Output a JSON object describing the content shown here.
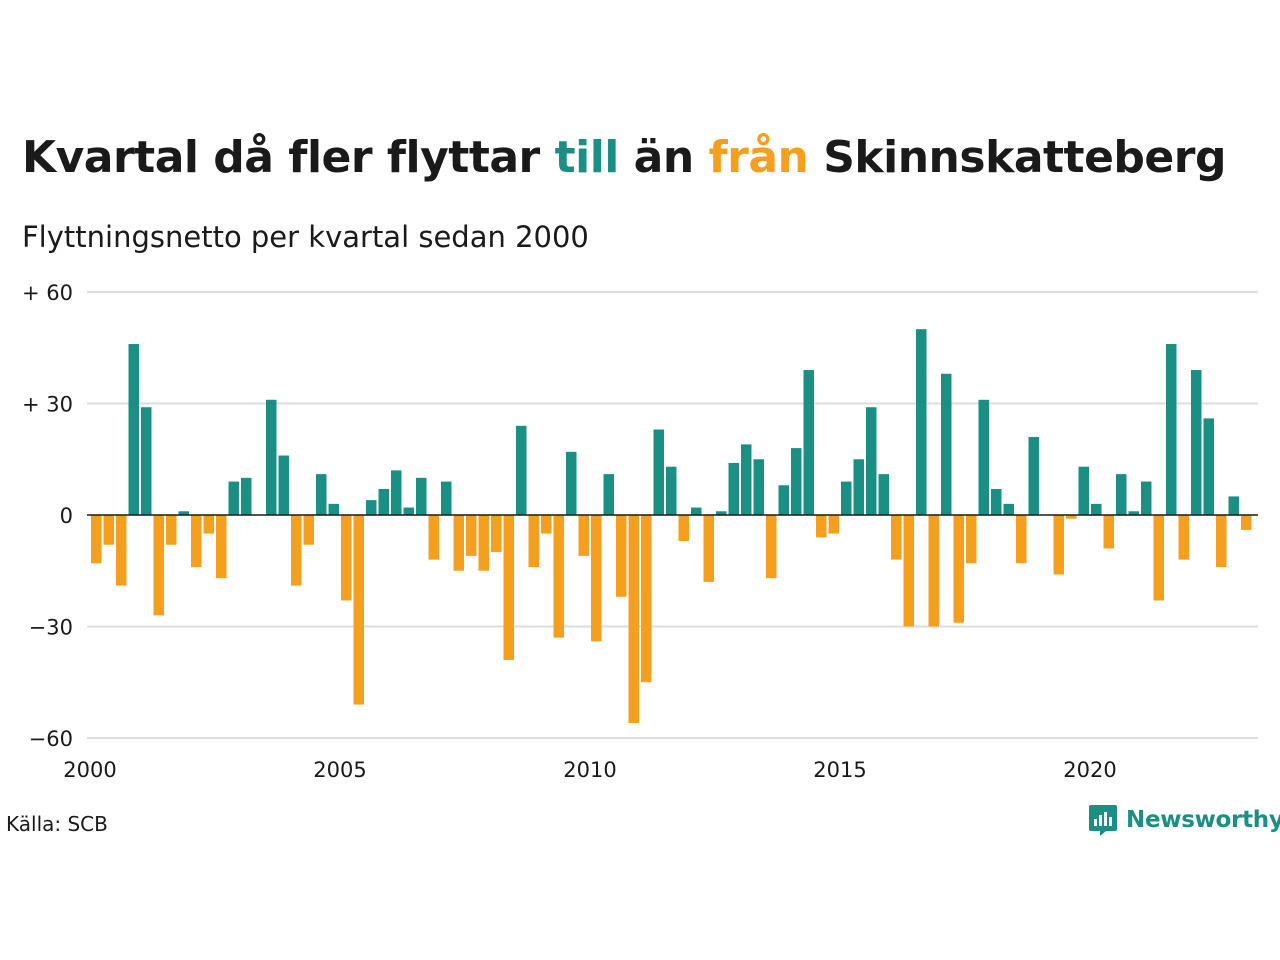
{
  "title": {
    "prefix": "Kvartal då fler flyttar ",
    "word_to": "till",
    "middle": " än ",
    "word_from": "från",
    "suffix": " Skinnskatteberg"
  },
  "subtitle": "Flyttningsnetto per kvartal sedan 2000",
  "source": "Källa: SCB",
  "brand": {
    "name": "Newsworthy",
    "icon": "newsworthy-logo-icon"
  },
  "colors": {
    "positive": "#1a9085",
    "negative": "#f59f1e",
    "grid": "#dddddd",
    "axis": "#1a1a1a",
    "title_to": "#1a9085",
    "title_from": "#f59f1e"
  },
  "chart_data": {
    "type": "bar",
    "x_start": "2000 Q1",
    "ylim": [
      -60,
      60
    ],
    "yticks": [
      {
        "value": 60,
        "label": "+ 60"
      },
      {
        "value": 30,
        "label": "+ 30"
      },
      {
        "value": 0,
        "label": "0"
      },
      {
        "value": -30,
        "label": "−30"
      },
      {
        "value": -60,
        "label": "−60"
      }
    ],
    "xticks": [
      "2000",
      "2005",
      "2010",
      "2015",
      "2020"
    ],
    "grid": true,
    "values": [
      -13,
      -8,
      -19,
      46,
      29,
      -27,
      -8,
      1,
      -14,
      -5,
      -17,
      9,
      10,
      0,
      31,
      16,
      -19,
      -8,
      11,
      3,
      -23,
      -51,
      4,
      7,
      12,
      2,
      10,
      -12,
      9,
      -15,
      -11,
      -15,
      -10,
      -39,
      24,
      -14,
      -5,
      -33,
      17,
      -11,
      -34,
      11,
      -22,
      -56,
      -45,
      23,
      13,
      -7,
      2,
      -18,
      1,
      14,
      19,
      15,
      -17,
      8,
      18,
      39,
      -6,
      -5,
      9,
      15,
      29,
      11,
      -12,
      -30,
      50,
      -30,
      38,
      -29,
      -13,
      31,
      7,
      3,
      -13,
      21,
      0,
      -16,
      -1,
      13,
      3,
      -9,
      11,
      1,
      9,
      -23,
      46,
      -12,
      39,
      26,
      -14,
      5,
      -4
    ]
  }
}
